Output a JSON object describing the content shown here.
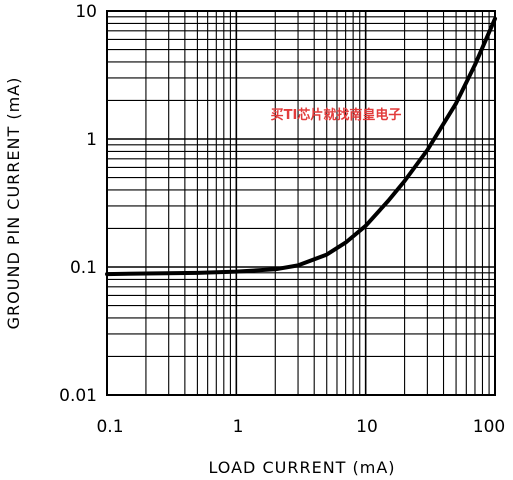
{
  "chart_data": {
    "type": "line",
    "xlabel": "LOAD CURRENT (mA)",
    "ylabel": "GROUND PIN CURRENT (mA)",
    "xscale": "log",
    "yscale": "log",
    "xlim": [
      0.1,
      100
    ],
    "ylim": [
      0.01,
      10
    ],
    "grid": true,
    "x_ticks": [
      "0.1",
      "1",
      "10",
      "100"
    ],
    "y_ticks": [
      "10",
      "1",
      "0.1",
      "0.01"
    ],
    "series": [
      {
        "x": [
          0.1,
          0.2,
          0.5,
          1,
          2,
          3,
          5,
          7,
          10,
          15,
          20,
          30,
          50,
          70,
          100
        ],
        "y": [
          0.088,
          0.089,
          0.09,
          0.092,
          0.096,
          0.103,
          0.125,
          0.155,
          0.21,
          0.33,
          0.47,
          0.82,
          1.9,
          3.8,
          8.7
        ]
      }
    ]
  },
  "watermark": "买TI芯片就找南皇电子"
}
